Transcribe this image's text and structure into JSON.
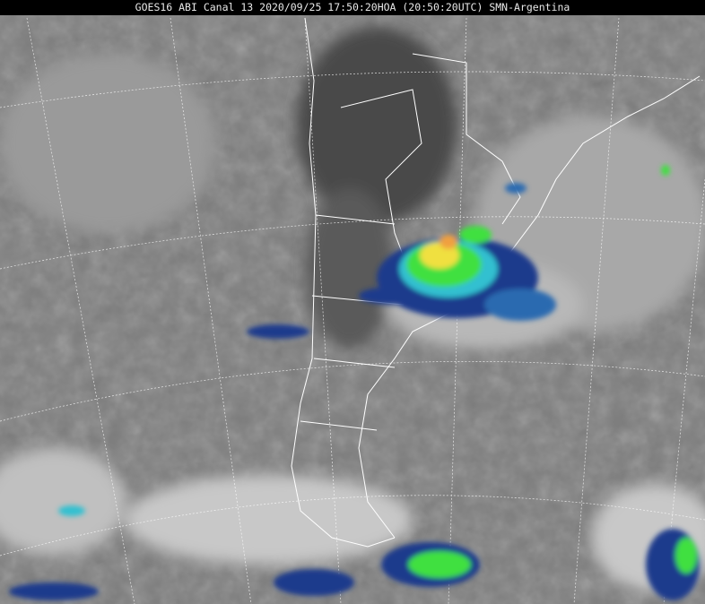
{
  "title": "GOES16 ABI Canal 13 2020/09/25 17:50:20HOA (20:50:20UTC) SMN-Argentina",
  "image": {
    "type": "infrared satellite image",
    "colors": {
      "background_gray": "#7a7a7a",
      "cold_cloud_white": "#e6e6e6",
      "deep_blue": "#1a3a8c",
      "cyan": "#30c0d0",
      "green": "#40e040",
      "yellow": "#f0e040",
      "orange": "#f0a040",
      "grid_line": "#ffffff"
    }
  }
}
